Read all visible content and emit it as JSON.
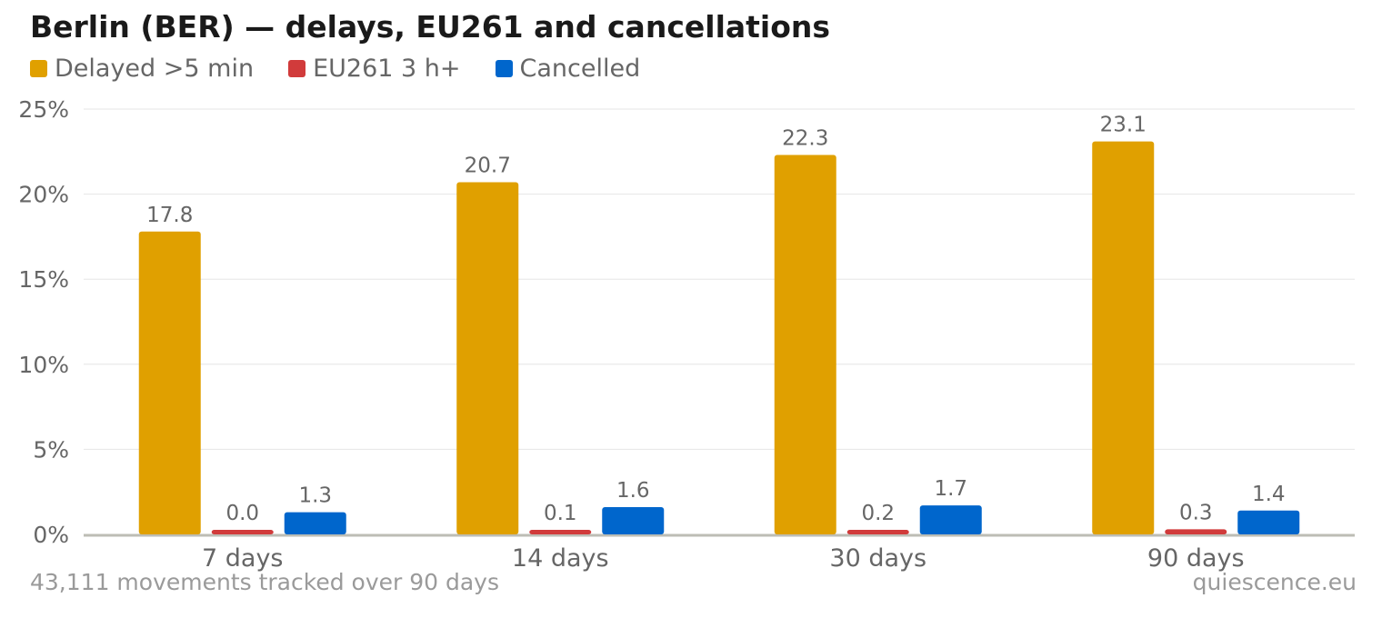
{
  "title": "Berlin (BER) — delays, EU261 and cancellations",
  "footer": {
    "note": "43,111 movements tracked over 90 days",
    "source": "quiescence.eu"
  },
  "legend": [
    {
      "label": "Delayed >5 min",
      "color": "#e0a000"
    },
    {
      "label": "EU261 3 h+",
      "color": "#d13b3b"
    },
    {
      "label": "Cancelled",
      "color": "#0066cc"
    }
  ],
  "chart_data": {
    "type": "bar",
    "categories": [
      "7 days",
      "14 days",
      "30 days",
      "90 days"
    ],
    "series": [
      {
        "name": "Delayed >5 min",
        "color": "#e0a000",
        "values": [
          17.8,
          20.7,
          22.3,
          23.1
        ]
      },
      {
        "name": "EU261 3 h+",
        "color": "#d13b3b",
        "values": [
          0.0,
          0.1,
          0.2,
          0.3
        ]
      },
      {
        "name": "Cancelled",
        "color": "#0066cc",
        "values": [
          1.3,
          1.6,
          1.7,
          1.4
        ]
      }
    ],
    "ylim": [
      0,
      25
    ],
    "yticks": [
      "0%",
      "5%",
      "10%",
      "15%",
      "20%",
      "25%"
    ],
    "ytick_values": [
      0,
      5,
      10,
      15,
      20,
      25
    ],
    "grid": true,
    "legend_position": "top-left"
  }
}
